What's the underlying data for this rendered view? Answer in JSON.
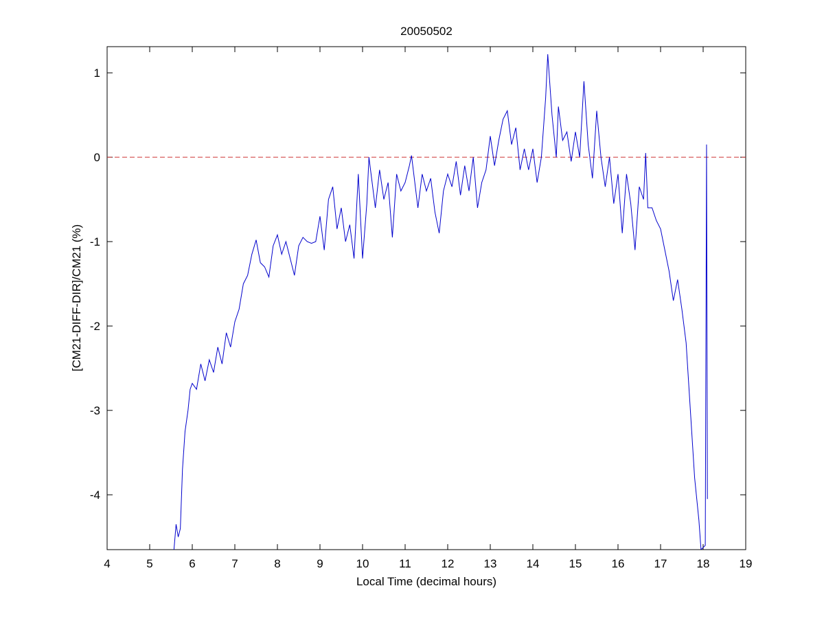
{
  "chart_data": {
    "type": "line",
    "title": "20050502",
    "x_label": "Local Time (decimal hours)",
    "y_label": "[CM21-DIFF-DIR]/CM21 (%)",
    "xlim": [
      4,
      19
    ],
    "ylim": [
      -4.65,
      1.31
    ],
    "xticks": [
      4,
      5,
      6,
      7,
      8,
      9,
      10,
      11,
      12,
      13,
      14,
      15,
      16,
      17,
      18,
      19
    ],
    "yticks": [
      -4,
      -3,
      -2,
      -1,
      0,
      1
    ],
    "grid": false,
    "reference_line": {
      "value": 0,
      "color": "#cc3333",
      "style": "dashed"
    },
    "series": [
      {
        "color": "#0000cc",
        "x": [
          5.57,
          5.62,
          5.67,
          5.72,
          5.77,
          5.83,
          5.9,
          5.95,
          6.0,
          6.1,
          6.2,
          6.3,
          6.4,
          6.5,
          6.6,
          6.7,
          6.8,
          6.9,
          7.0,
          7.1,
          7.2,
          7.3,
          7.4,
          7.5,
          7.6,
          7.7,
          7.8,
          7.9,
          8.0,
          8.1,
          8.2,
          8.3,
          8.4,
          8.5,
          8.6,
          8.7,
          8.8,
          8.9,
          9.0,
          9.1,
          9.2,
          9.3,
          9.4,
          9.5,
          9.6,
          9.7,
          9.8,
          9.9,
          10.0,
          10.1,
          10.15,
          10.3,
          10.4,
          10.5,
          10.6,
          10.7,
          10.8,
          10.9,
          11.0,
          11.1,
          11.15,
          11.3,
          11.4,
          11.5,
          11.6,
          11.7,
          11.8,
          11.9,
          12.0,
          12.1,
          12.2,
          12.3,
          12.4,
          12.5,
          12.6,
          12.7,
          12.8,
          12.9,
          13.0,
          13.1,
          13.2,
          13.3,
          13.4,
          13.5,
          13.6,
          13.7,
          13.8,
          13.9,
          14.0,
          14.1,
          14.2,
          14.3,
          14.35,
          14.45,
          14.55,
          14.6,
          14.7,
          14.8,
          14.9,
          15.0,
          15.1,
          15.2,
          15.3,
          15.4,
          15.5,
          15.6,
          15.7,
          15.8,
          15.9,
          16.0,
          16.1,
          16.2,
          16.3,
          16.4,
          16.5,
          16.6,
          16.65,
          16.7,
          16.8,
          16.9,
          17.0,
          17.1,
          17.2,
          17.3,
          17.4,
          17.5,
          17.6,
          17.7,
          17.8,
          17.9,
          17.95,
          18.05,
          18.08,
          18.1
        ],
        "values": [
          -4.65,
          -4.35,
          -4.5,
          -4.4,
          -3.7,
          -3.25,
          -3.0,
          -2.75,
          -2.68,
          -2.75,
          -2.45,
          -2.65,
          -2.4,
          -2.55,
          -2.25,
          -2.45,
          -2.08,
          -2.25,
          -1.95,
          -1.8,
          -1.5,
          -1.4,
          -1.15,
          -0.98,
          -1.25,
          -1.3,
          -1.42,
          -1.05,
          -0.92,
          -1.15,
          -1.0,
          -1.2,
          -1.4,
          -1.05,
          -0.95,
          -1.0,
          -1.02,
          -1.0,
          -0.7,
          -1.1,
          -0.5,
          -0.35,
          -0.85,
          -0.6,
          -1.0,
          -0.8,
          -1.2,
          -0.2,
          -1.2,
          -0.55,
          0.0,
          -0.6,
          -0.15,
          -0.5,
          -0.3,
          -0.95,
          -0.2,
          -0.4,
          -0.3,
          -0.1,
          0.02,
          -0.6,
          -0.2,
          -0.4,
          -0.25,
          -0.65,
          -0.9,
          -0.4,
          -0.2,
          -0.35,
          -0.05,
          -0.45,
          -0.1,
          -0.4,
          0.0,
          -0.6,
          -0.3,
          -0.15,
          0.25,
          -0.1,
          0.2,
          0.45,
          0.55,
          0.15,
          0.35,
          -0.15,
          0.1,
          -0.15,
          0.1,
          -0.3,
          0.0,
          0.7,
          1.22,
          0.5,
          0.0,
          0.6,
          0.2,
          0.3,
          -0.05,
          0.3,
          0.0,
          0.9,
          0.15,
          -0.25,
          0.55,
          0.0,
          -0.35,
          0.0,
          -0.55,
          -0.2,
          -0.9,
          -0.2,
          -0.55,
          -1.1,
          -0.35,
          -0.5,
          0.05,
          -0.6,
          -0.6,
          -0.75,
          -0.85,
          -1.1,
          -1.35,
          -1.7,
          -1.45,
          -1.8,
          -2.2,
          -3.0,
          -3.8,
          -4.3,
          -4.65,
          -4.6,
          0.15,
          -4.05
        ]
      }
    ]
  }
}
